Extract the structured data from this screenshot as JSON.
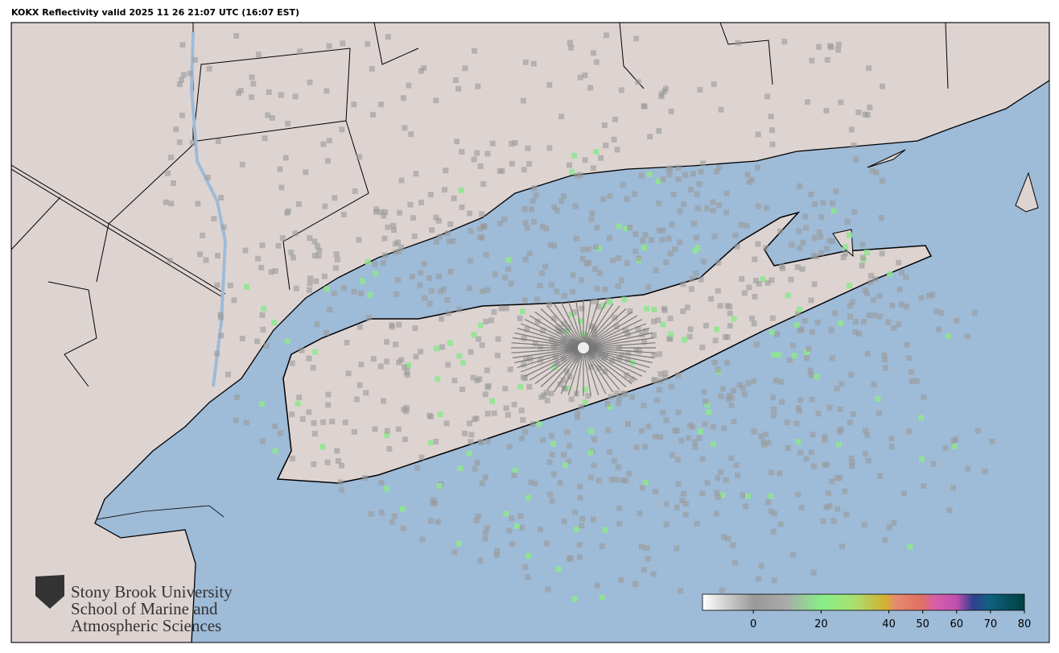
{
  "title": "KOKX Reflectivity valid 2025 11 26 21:07 UTC (16:07 EST)",
  "logo": {
    "lines": [
      "Stony Brook University",
      "School of Marine and",
      "Atmospheric Sciences"
    ]
  },
  "colorbar": {
    "range": [
      -15,
      80
    ],
    "ticks": [
      0,
      20,
      40,
      50,
      60,
      70,
      80
    ]
  }
}
